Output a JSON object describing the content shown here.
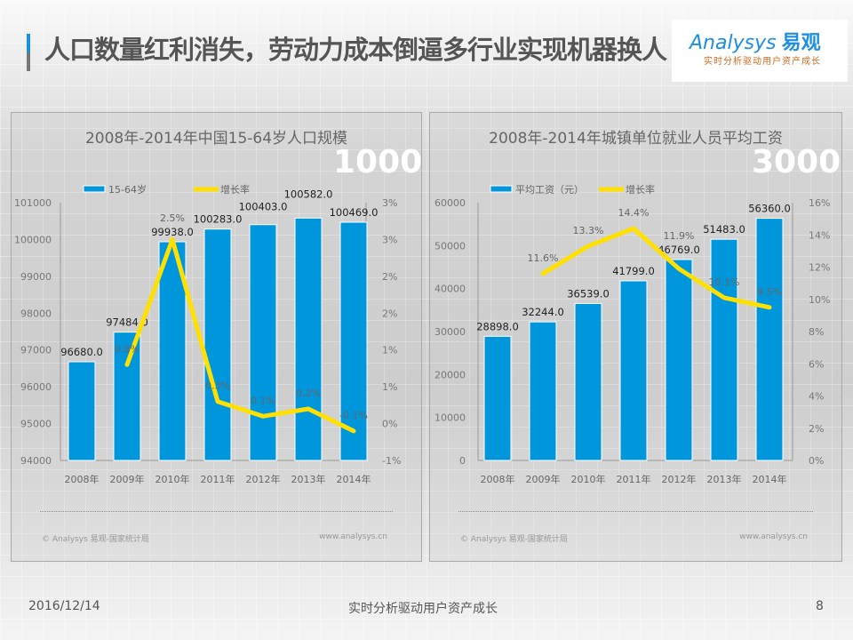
{
  "header": {
    "title": "人口数量红利消失，劳动力成本倒逼多行业实现机器换人"
  },
  "logo": {
    "brand": "Analysys",
    "brand_cn": "易观",
    "slogan": "实时分析驱动用户资产成长"
  },
  "colors": {
    "bar": "#0096dc",
    "line": "#ffe000",
    "accent": "#1e8fe0"
  },
  "watermark": "Analysys 易观 实时分析驱动用户资产成长",
  "chart_data": [
    {
      "type": "bar",
      "title": "2008年-2014年中国15-64岁人口规模",
      "overlay_text": "1000",
      "categories": [
        "2008年",
        "2009年",
        "2010年",
        "2011年",
        "2012年",
        "2013年",
        "2014年"
      ],
      "series": [
        {
          "name": "15-64岁",
          "type": "bar",
          "axis": "left",
          "values": [
            96680.0,
            97484.0,
            99938.0,
            100283.0,
            100403.0,
            100582.0,
            100469.0
          ],
          "labels": [
            "96680.0",
            "97484.0",
            "99938.0",
            "100283.0",
            "100403.0",
            "100582.0",
            "100469.0"
          ]
        },
        {
          "name": "增长率",
          "type": "line",
          "axis": "right",
          "values": [
            null,
            0.8,
            2.5,
            0.3,
            0.1,
            0.2,
            -0.1
          ],
          "labels": [
            "",
            "0.8%",
            "2.5%",
            "0.3%",
            "0.1%",
            "0.2%",
            "-0.1%"
          ]
        }
      ],
      "ylim": [
        94000,
        101000
      ],
      "yticks": [
        "94000",
        "95000",
        "96000",
        "97000",
        "98000",
        "99000",
        "100000",
        "101000"
      ],
      "y2lim": [
        -0.5,
        3.0
      ],
      "y2ticks": [
        "-1%",
        "0%",
        "1%",
        "1%",
        "2%",
        "2%",
        "3%",
        "3%"
      ],
      "legend": "top-left",
      "grid": true,
      "source": "© Analysys 易观-国家统计局",
      "site": "www.analysys.cn"
    },
    {
      "type": "bar",
      "title": "2008年-2014年城镇单位就业人员平均工资",
      "overlay_text": "3000",
      "categories": [
        "2008年",
        "2009年",
        "2010年",
        "2011年",
        "2012年",
        "2013年",
        "2014年"
      ],
      "series": [
        {
          "name": "平均工资（元）",
          "type": "bar",
          "axis": "left",
          "values": [
            28898.0,
            32244.0,
            36539.0,
            41799.0,
            46769.0,
            51483.0,
            56360.0
          ],
          "labels": [
            "28898.0",
            "32244.0",
            "36539.0",
            "41799.0",
            "46769.0",
            "51483.0",
            "56360.0"
          ]
        },
        {
          "name": "增长率",
          "type": "line",
          "axis": "right",
          "values": [
            null,
            11.6,
            13.3,
            14.4,
            11.9,
            10.1,
            9.5
          ],
          "labels": [
            "",
            "11.6%",
            "13.3%",
            "14.4%",
            "11.9%",
            "10.1%",
            "9.5%"
          ]
        }
      ],
      "ylim": [
        0,
        60000
      ],
      "yticks": [
        "0",
        "10000",
        "20000",
        "30000",
        "40000",
        "50000",
        "60000"
      ],
      "y2lim": [
        0,
        16
      ],
      "y2ticks": [
        "0%",
        "2%",
        "4%",
        "6%",
        "8%",
        "10%",
        "12%",
        "14%",
        "16%"
      ],
      "legend": "top-left",
      "grid": true,
      "source": "© Analysys 易观-国家统计局",
      "site": "www.analysys.cn"
    }
  ],
  "footer": {
    "date": "2016/12/14",
    "slogan": "实时分析驱动用户资产成长",
    "page": "8"
  }
}
